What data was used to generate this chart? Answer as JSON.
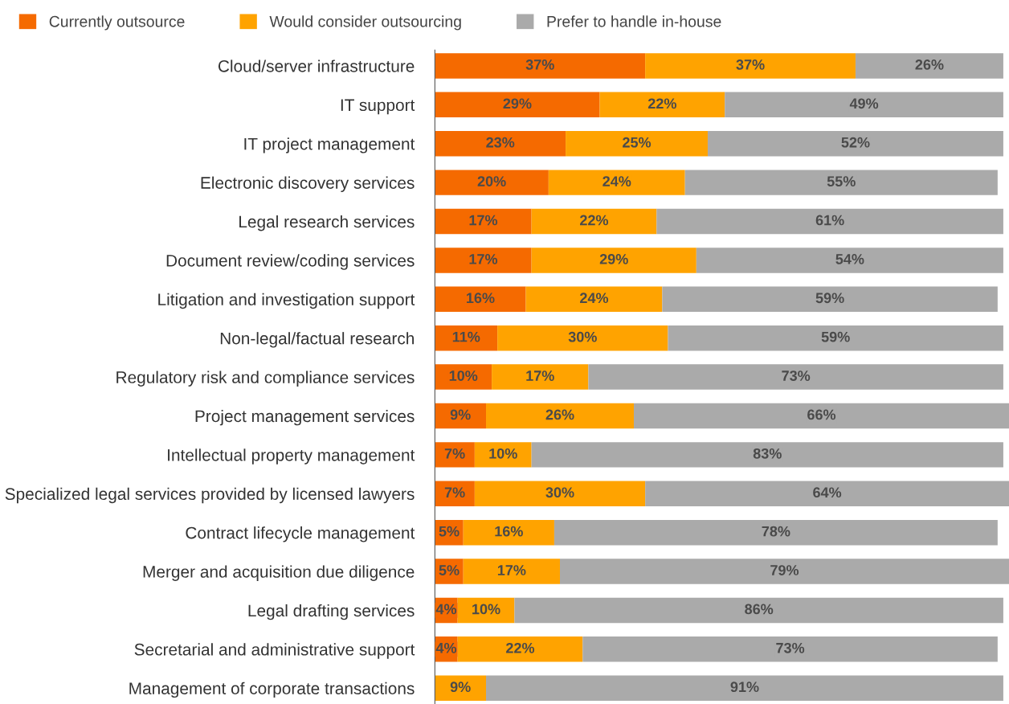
{
  "chart_data": {
    "type": "bar",
    "orientation": "horizontal",
    "stacked": true,
    "legend": "top",
    "categories": [
      "Cloud/server infrastructure",
      "IT support",
      "IT project management",
      "Electronic discovery services",
      "Legal research services",
      "Document review/coding services",
      "Litigation and investigation support",
      "Non-legal/factual research",
      "Regulatory risk and compliance services",
      "Project management services",
      "Intellectual property management",
      "Specialized legal services provided by licensed lawyers",
      "Contract lifecycle management",
      "Merger and acquisition due diligence",
      "Legal drafting services",
      "Secretarial and administrative support",
      "Management of corporate transactions"
    ],
    "series": [
      {
        "name": "Currently outsource",
        "color": "#f56a00",
        "values": [
          37,
          29,
          23,
          20,
          17,
          17,
          16,
          11,
          10,
          9,
          7,
          7,
          5,
          5,
          4,
          4,
          0
        ],
        "value_labels": [
          "37%",
          "29%",
          "23%",
          "20%",
          "17%",
          "17%",
          "16%",
          "11%",
          "10%",
          "9%",
          "7%",
          "7%",
          "5%",
          "5%",
          "4%",
          "4%",
          null
        ]
      },
      {
        "name": "Would consider outsourcing",
        "color": "#ffa300",
        "values": [
          37,
          22,
          25,
          24,
          22,
          29,
          24,
          30,
          17,
          26,
          10,
          30,
          16,
          17,
          10,
          22,
          9
        ],
        "value_labels": [
          "37%",
          "22%",
          "25%",
          "24%",
          "22%",
          "29%",
          "24%",
          "30%",
          "17%",
          "26%",
          "10%",
          "30%",
          "16%",
          "17%",
          "10%",
          "22%",
          "9%"
        ]
      },
      {
        "name": "Prefer to handle in-house",
        "color": "#aaaaaa",
        "values": [
          26,
          49,
          52,
          55,
          61,
          54,
          59,
          59,
          73,
          66,
          83,
          64,
          78,
          79,
          86,
          73,
          91
        ],
        "value_labels": [
          "26%",
          "49%",
          "52%",
          "55%",
          "61%",
          "54%",
          "59%",
          "59%",
          "73%",
          "66%",
          "83%",
          "64%",
          "78%",
          "79%",
          "86%",
          "73%",
          "91%"
        ]
      }
    ]
  }
}
